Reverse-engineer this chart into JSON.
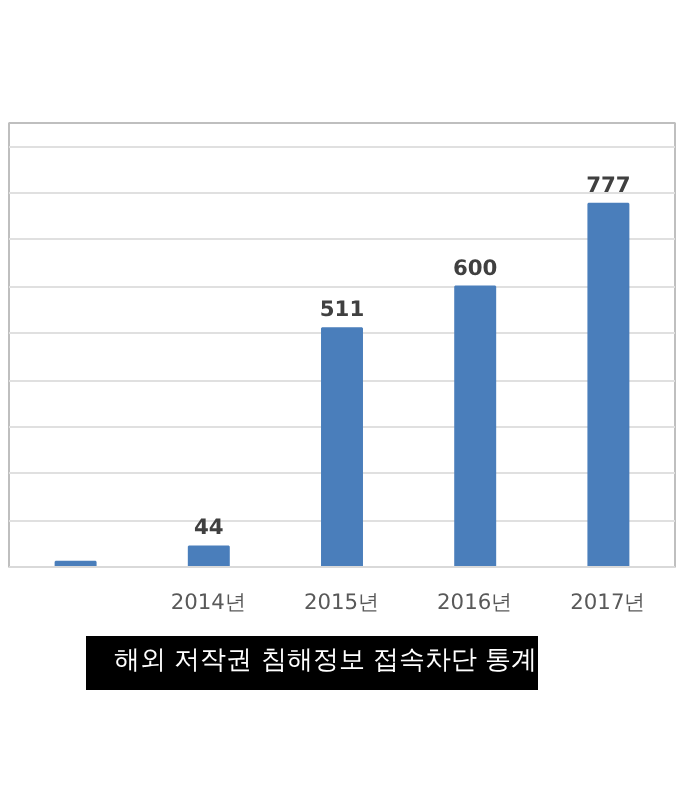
{
  "chart_data": {
    "type": "bar",
    "categories": [
      null,
      "2014년",
      "2015년",
      "2016년",
      "2017년"
    ],
    "values": [
      11,
      44,
      511,
      600,
      777
    ],
    "value_labels": [
      null,
      "44",
      "511",
      "600",
      "777"
    ],
    "color": "#4a7ebb",
    "ylim": [
      0,
      950
    ],
    "yticks": [
      {
        "value": 0,
        "label": null
      },
      {
        "value": 100,
        "label": null
      },
      {
        "value": 200,
        "label": null
      },
      {
        "value": 300,
        "label": null
      },
      {
        "value": 400,
        "label": null
      },
      {
        "value": 500,
        "label": null
      },
      {
        "value": 600,
        "label": null
      },
      {
        "value": 700,
        "label": null
      },
      {
        "value": 800,
        "label": null
      },
      {
        "value": 900,
        "label": null
      }
    ],
    "grid": "y",
    "tick_labels": "x",
    "annotations": [
      "해외 저작권 침해정보 접속차단 통계"
    ]
  }
}
